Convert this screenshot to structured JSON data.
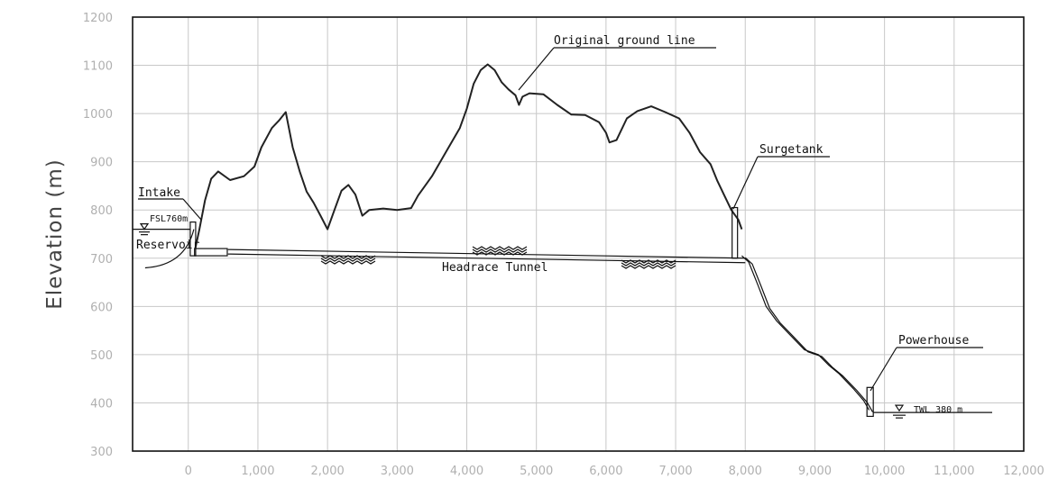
{
  "axis": {
    "ylabel": "Elevation (m)",
    "x_min": -800,
    "x_max": 12000,
    "y_min": 300,
    "y_max": 1200,
    "x_ticks": [
      "0",
      "1,000",
      "2,000",
      "3,000",
      "4,000",
      "5,000",
      "6,000",
      "7,000",
      "8,000",
      "9,000",
      "10,000",
      "11,000",
      "12,000"
    ],
    "y_ticks": [
      "1200",
      "1100",
      "1000",
      "900",
      "800",
      "700",
      "600",
      "500",
      "400",
      "300"
    ]
  },
  "labels": {
    "intake": "Intake",
    "fsl": "FSL760m",
    "reservoir": "Reservoir",
    "headrace": "Headrace Tunnel",
    "ground_line": "Original ground line",
    "surgetank": "Surgetank",
    "powerhouse": "Powerhouse",
    "twl": "TWL 380 m"
  },
  "ground_profile": [
    [
      100,
      720
    ],
    [
      160,
      760
    ],
    [
      240,
      820
    ],
    [
      330,
      865
    ],
    [
      430,
      880
    ],
    [
      600,
      862
    ],
    [
      800,
      870
    ],
    [
      950,
      890
    ],
    [
      1050,
      930
    ],
    [
      1200,
      970
    ],
    [
      1300,
      985
    ],
    [
      1400,
      1003
    ],
    [
      1500,
      930
    ],
    [
      1600,
      880
    ],
    [
      1700,
      838
    ],
    [
      1800,
      815
    ],
    [
      1900,
      788
    ],
    [
      2000,
      760
    ],
    [
      2100,
      800
    ],
    [
      2200,
      840
    ],
    [
      2300,
      852
    ],
    [
      2400,
      832
    ],
    [
      2500,
      788
    ],
    [
      2600,
      800
    ],
    [
      2800,
      803
    ],
    [
      3000,
      800
    ],
    [
      3200,
      804
    ],
    [
      3300,
      830
    ],
    [
      3500,
      870
    ],
    [
      3700,
      920
    ],
    [
      3900,
      970
    ],
    [
      4000,
      1010
    ],
    [
      4100,
      1062
    ],
    [
      4200,
      1090
    ],
    [
      4300,
      1102
    ],
    [
      4400,
      1090
    ],
    [
      4500,
      1065
    ],
    [
      4600,
      1050
    ],
    [
      4700,
      1038
    ],
    [
      4750,
      1018
    ],
    [
      4800,
      1035
    ],
    [
      4900,
      1042
    ],
    [
      5100,
      1040
    ],
    [
      5300,
      1018
    ],
    [
      5500,
      998
    ],
    [
      5700,
      997
    ],
    [
      5900,
      982
    ],
    [
      6000,
      960
    ],
    [
      6050,
      940
    ],
    [
      6150,
      945
    ],
    [
      6300,
      990
    ],
    [
      6450,
      1005
    ],
    [
      6650,
      1015
    ],
    [
      6850,
      1003
    ],
    [
      7050,
      990
    ],
    [
      7200,
      960
    ],
    [
      7350,
      920
    ],
    [
      7500,
      895
    ],
    [
      7600,
      860
    ],
    [
      7700,
      830
    ],
    [
      7800,
      800
    ],
    [
      7900,
      780
    ],
    [
      7950,
      760
    ]
  ],
  "penstock": [
    [
      7950,
      705
    ],
    [
      8050,
      692
    ],
    [
      8180,
      645
    ],
    [
      8300,
      600
    ],
    [
      8450,
      570
    ],
    [
      8650,
      540
    ],
    [
      8850,
      510
    ],
    [
      9050,
      500
    ],
    [
      9200,
      478
    ],
    [
      9350,
      460
    ],
    [
      9550,
      430
    ],
    [
      9700,
      405
    ],
    [
      9780,
      385
    ]
  ],
  "headrace_tunnel": {
    "start": [
      570,
      718
    ],
    "end": [
      8000,
      700
    ]
  },
  "intake_x": 80,
  "surgetank_x": 7850,
  "powerhouse_x": 9800,
  "fsl_elev": 760,
  "twl_elev": 380
}
